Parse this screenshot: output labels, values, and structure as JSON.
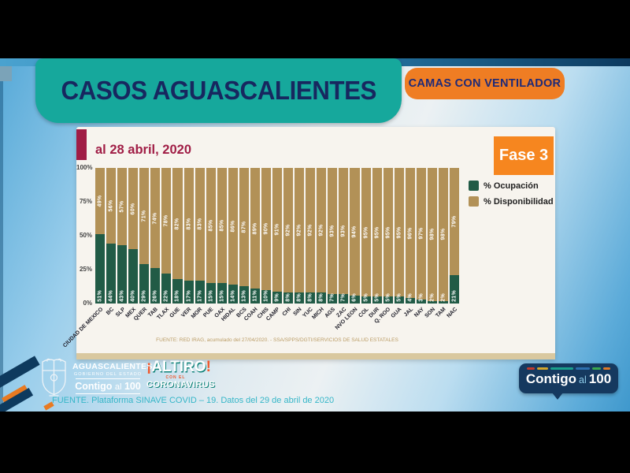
{
  "title": "CASOS AGUASCALIENTES",
  "top_banner": "CAMAS CON VENTILADOR",
  "chart": {
    "date_label": "al 28 abril, 2020",
    "phase_badge": "Fase 3",
    "y_ticks": [
      "100%",
      "75%",
      "50%",
      "25%",
      "0%"
    ],
    "source": "FUENTE: RED IRAG, acumulado del 27/04/2020. - SSA/SPPS/DGTI/SERVICIOS DE SALUD ESTATALES"
  },
  "chart_data": {
    "type": "bar",
    "stacked": true,
    "title": "CAMAS CON VENTILADOR",
    "categories": [
      "CIUDAD DE MEXICO",
      "BC",
      "SLP",
      "MEX",
      "QUER",
      "TAB",
      "TLAX",
      "GUE",
      "VER",
      "MOR",
      "PUE",
      "OAX",
      "HIDAL",
      "BCS",
      "COAH",
      "CHIS",
      "CAMP",
      "CHI",
      "SIN",
      "YUC",
      "MICH",
      "AGS",
      "ZAC",
      "NVO LEON",
      "COL",
      "DUR",
      "Q. ROO",
      "GUA",
      "JAL",
      "NAY",
      "SON",
      "TAM",
      "NAC"
    ],
    "series": [
      {
        "name": "% Ocupación",
        "color": "#215b46",
        "values": [
          51,
          44,
          43,
          40,
          29,
          26,
          22,
          18,
          17,
          17,
          15,
          15,
          14,
          13,
          11,
          10,
          9,
          8,
          8,
          8,
          8,
          7,
          7,
          6,
          5,
          5,
          5,
          5,
          4,
          3,
          2,
          2,
          21
        ]
      },
      {
        "name": "% Disponibilidad",
        "color": "#b29157",
        "values": [
          49,
          56,
          57,
          60,
          71,
          74,
          78,
          82,
          83,
          83,
          85,
          85,
          86,
          87,
          89,
          90,
          91,
          92,
          92,
          92,
          92,
          93,
          93,
          94,
          95,
          95,
          95,
          95,
          96,
          97,
          98,
          98,
          79
        ]
      }
    ],
    "ylim": [
      0,
      100
    ],
    "grid": false,
    "legend_position": "right",
    "value_label_format": "percent"
  },
  "branding": {
    "gov": {
      "name": "AGUASCALIENTES",
      "subtitle": "GOBIERNO DEL ESTADO",
      "slogan": [
        "Contigo",
        "al",
        "100"
      ]
    },
    "altiro": {
      "open_mark": "¡",
      "title": "ALTIRO",
      "close_mark": "!",
      "middle": "CON EL",
      "subtitle": "CORONAVIRUS"
    },
    "contigo_badge": {
      "words": [
        "Contigo",
        "al",
        "100"
      ],
      "dashes": [
        {
          "color": "#c23a2c",
          "w": 12
        },
        {
          "color": "#d3a62c",
          "w": 16
        },
        {
          "color": "#1aa08c",
          "w": 34
        },
        {
          "color": "#2c6fae",
          "w": 22
        },
        {
          "color": "#3aa84f",
          "w": 12
        },
        {
          "color": "#df7a28",
          "w": 11
        }
      ]
    }
  },
  "footer": {
    "source": "FUENTE. Plataforma SINAVE COVID – 19. Datos del 29 de abril de 2020"
  },
  "colors": {
    "teal_banner": "#16a89c",
    "orange_banner": "#ef7d23",
    "phase_orange": "#f6861f",
    "maroon_accent": "#a01d45",
    "card_background": "#f7f4ee",
    "card_strip": "#d9c89f",
    "occupation_green": "#215b46",
    "availability_tan": "#b29157",
    "footer_teal": "#36b6c8",
    "badge_navy": "#15395f"
  }
}
